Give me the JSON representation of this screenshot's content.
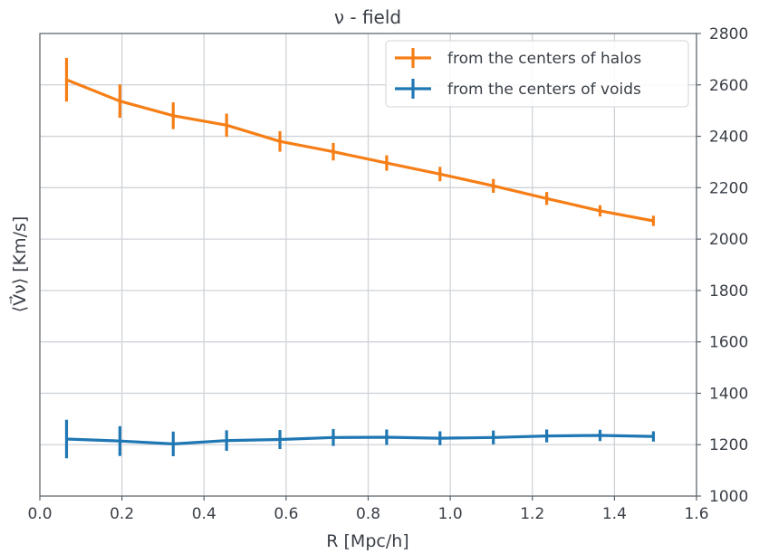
{
  "chart_data": {
    "type": "line",
    "title": "ν - field",
    "xlabel": "R [Mpc/h]",
    "ylabel": "⟨V⃗ν⟩ [Km/s]",
    "xlim": [
      0.0,
      1.6
    ],
    "ylim": [
      1000,
      2800
    ],
    "x_ticks": [
      "0.0",
      "0.2",
      "0.4",
      "0.6",
      "0.8",
      "1.0",
      "1.2",
      "1.4",
      "1.6"
    ],
    "y_ticks": [
      "1000",
      "1200",
      "1400",
      "1600",
      "1800",
      "2000",
      "2200",
      "2400",
      "2600",
      "2800"
    ],
    "y_axis_side": "right",
    "grid": true,
    "legend_placement": "top-right",
    "x": [
      0.065,
      0.195,
      0.325,
      0.455,
      0.585,
      0.715,
      0.845,
      0.975,
      1.105,
      1.235,
      1.365,
      1.495
    ],
    "series": [
      {
        "name": "from the centers of halos",
        "color": "#f67e16",
        "values": [
          2620,
          2537,
          2480,
          2443,
          2380,
          2340,
          2296,
          2253,
          2207,
          2158,
          2110,
          2071
        ],
        "errors": [
          85,
          65,
          52,
          45,
          40,
          34,
          30,
          28,
          27,
          25,
          22,
          20
        ]
      },
      {
        "name": "from the centers of voids",
        "color": "#1f77b4",
        "values": [
          1222,
          1214,
          1203,
          1216,
          1220,
          1228,
          1229,
          1225,
          1228,
          1234,
          1236,
          1232
        ],
        "errors": [
          75,
          58,
          48,
          40,
          37,
          33,
          30,
          27,
          27,
          25,
          22,
          20
        ]
      }
    ]
  }
}
